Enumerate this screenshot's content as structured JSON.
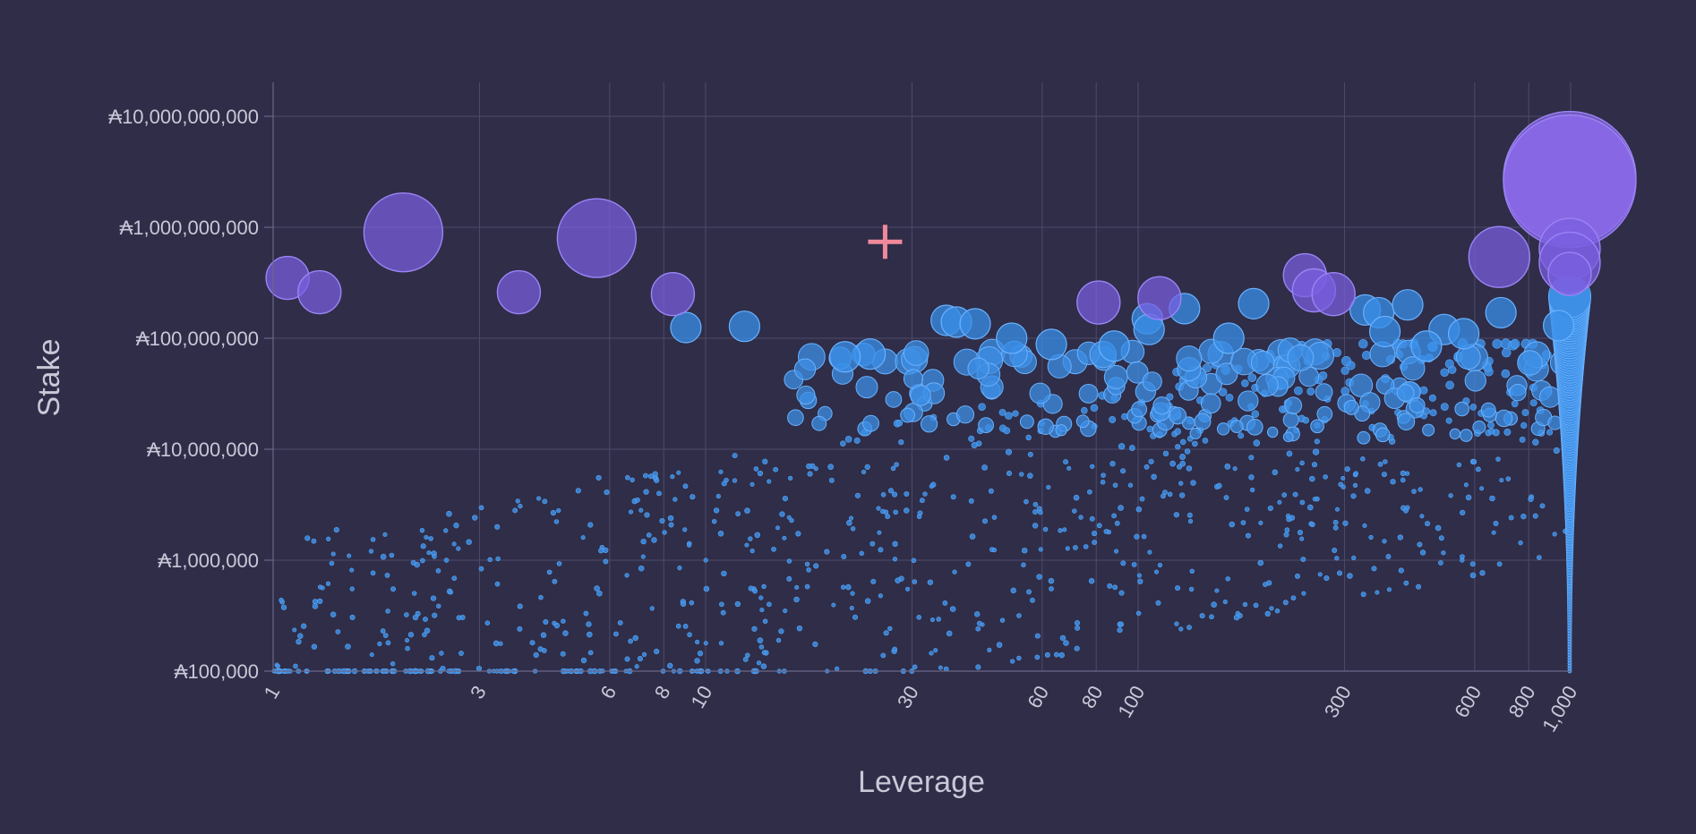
{
  "chart_data": {
    "type": "scatter",
    "subtype": "bubble",
    "title": "",
    "xlabel": "Leverage",
    "ylabel": "Stake",
    "x_scale": "log",
    "y_scale": "log",
    "xlim": [
      1,
      1000
    ],
    "ylim": [
      100000,
      10000000000
    ],
    "x_ticks": [
      1,
      3,
      6,
      8,
      10,
      30,
      60,
      80,
      100,
      300,
      600,
      800,
      1000
    ],
    "x_tick_labels": [
      "1",
      "3",
      "6",
      "8",
      "10",
      "30",
      "60",
      "80",
      "100",
      "300",
      "600",
      "800",
      "1,000"
    ],
    "y_ticks": [
      100000,
      1000000,
      10000000,
      100000000,
      1000000000,
      10000000000
    ],
    "y_tick_labels": [
      "₳100,000",
      "₳1,000,000",
      "₳10,000,000",
      "₳100,000,000",
      "₳1,000,000,000",
      "₳10,000,000,000"
    ],
    "grid": true,
    "legend": "none",
    "colors": {
      "background": "#2f2d48",
      "small_points": "#3d8fe6",
      "medium_bubbles": "#3a8fe8",
      "large_bubbles": "#7a5fe0",
      "largest_bubbles": "#8f6cf0",
      "marker": "#f0899a"
    },
    "large_bubbles": [
      {
        "x": 1.08,
        "y": 350000000
      },
      {
        "x": 1.28,
        "y": 260000000
      },
      {
        "x": 2.0,
        "y": 900000000
      },
      {
        "x": 3.7,
        "y": 260000000
      },
      {
        "x": 5.6,
        "y": 800000000
      },
      {
        "x": 8.4,
        "y": 250000000
      },
      {
        "x": 81,
        "y": 210000000
      },
      {
        "x": 112,
        "y": 230000000
      },
      {
        "x": 243,
        "y": 370000000
      },
      {
        "x": 255,
        "y": 270000000
      },
      {
        "x": 283,
        "y": 250000000
      },
      {
        "x": 684,
        "y": 540000000
      },
      {
        "x": 995,
        "y": 2800000000
      },
      {
        "x": 995,
        "y": 2600000000
      },
      {
        "x": 995,
        "y": 640000000
      },
      {
        "x": 995,
        "y": 480000000
      },
      {
        "x": 995,
        "y": 380000000
      }
    ],
    "medium_bubbles": [
      {
        "x": 9.0,
        "y": 125000000
      },
      {
        "x": 12.3,
        "y": 128000000
      },
      {
        "x": 36,
        "y": 145000000
      },
      {
        "x": 38,
        "y": 140000000
      },
      {
        "x": 42,
        "y": 135000000
      },
      {
        "x": 51,
        "y": 100000000
      },
      {
        "x": 105,
        "y": 150000000
      },
      {
        "x": 106,
        "y": 120000000
      },
      {
        "x": 128,
        "y": 185000000
      },
      {
        "x": 185,
        "y": 205000000
      },
      {
        "x": 335,
        "y": 180000000
      },
      {
        "x": 360,
        "y": 170000000
      },
      {
        "x": 420,
        "y": 200000000
      },
      {
        "x": 690,
        "y": 170000000
      },
      {
        "x": 938,
        "y": 130000000
      },
      {
        "x": 510,
        "y": 120000000
      },
      {
        "x": 566,
        "y": 110000000
      },
      {
        "x": 372,
        "y": 115000000
      },
      {
        "x": 464,
        "y": 85000000
      },
      {
        "x": 162,
        "y": 100000000
      },
      {
        "x": 24,
        "y": 72000000
      },
      {
        "x": 21,
        "y": 68000000
      },
      {
        "x": 63,
        "y": 88000000
      },
      {
        "x": 88,
        "y": 85000000
      }
    ],
    "marker_point": {
      "x": 26,
      "y": 740000000,
      "symbol": "plus"
    },
    "dense_series_note_x": 995
  }
}
